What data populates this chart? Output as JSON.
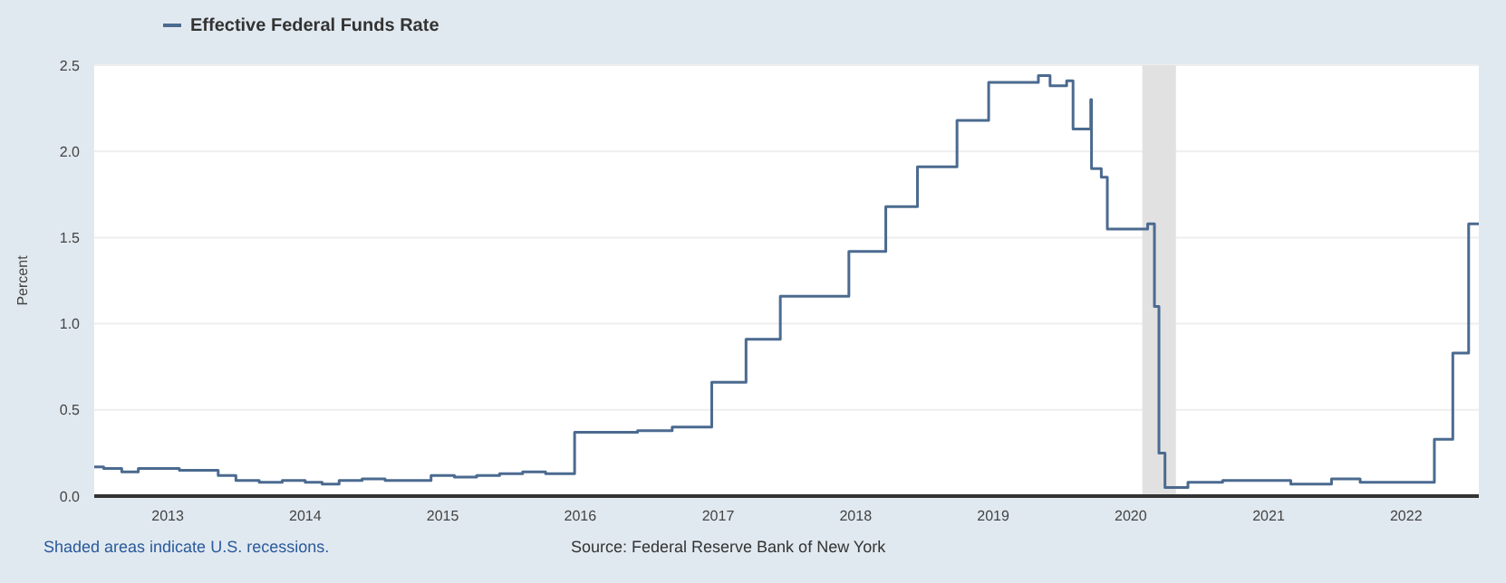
{
  "chart_data": {
    "type": "step",
    "ylabel": "Percent",
    "annotations": [
      "Shaded areas indicate U.S. recessions.",
      "Source: Federal Reserve Bank of New York"
    ],
    "x": [
      "2012-06-20",
      "2012-07-15",
      "2012-09-01",
      "2012-10-15",
      "2012-12-01",
      "2013-02-01",
      "2013-04-01",
      "2013-05-15",
      "2013-07-01",
      "2013-09-01",
      "2013-11-01",
      "2014-01-01",
      "2014-02-15",
      "2014-04-01",
      "2014-06-01",
      "2014-08-01",
      "2014-10-01",
      "2014-12-01",
      "2015-02-01",
      "2015-04-01",
      "2015-06-01",
      "2015-08-01",
      "2015-10-01",
      "2015-12-17",
      "2016-03-01",
      "2016-06-01",
      "2016-09-01",
      "2016-12-15",
      "2017-03-16",
      "2017-06-15",
      "2017-12-14",
      "2018-03-22",
      "2018-06-14",
      "2018-09-27",
      "2018-12-20",
      "2019-03-01",
      "2019-05-01",
      "2019-06-01",
      "2019-07-15",
      "2019-08-01",
      "2019-09-17",
      "2019-09-19",
      "2019-10-15",
      "2019-10-31",
      "2019-12-01",
      "2020-01-15",
      "2020-02-15",
      "2020-03-04",
      "2020-03-16",
      "2020-04-01",
      "2020-06-01",
      "2020-09-01",
      "2021-01-01",
      "2021-03-01",
      "2021-06-17",
      "2021-09-01",
      "2021-12-01",
      "2022-03-17",
      "2022-05-05",
      "2022-06-16",
      "2022-07-13"
    ],
    "series": [
      {
        "name": "Effective Federal Funds Rate",
        "color": "#4b6a8f",
        "values": [
          0.17,
          0.16,
          0.14,
          0.16,
          0.16,
          0.15,
          0.15,
          0.12,
          0.09,
          0.08,
          0.09,
          0.08,
          0.07,
          0.09,
          0.1,
          0.09,
          0.09,
          0.12,
          0.11,
          0.12,
          0.13,
          0.14,
          0.13,
          0.37,
          0.37,
          0.38,
          0.4,
          0.66,
          0.91,
          1.16,
          1.42,
          1.68,
          1.91,
          2.18,
          2.4,
          2.4,
          2.44,
          2.38,
          2.41,
          2.13,
          2.3,
          1.9,
          1.85,
          1.55,
          1.55,
          1.55,
          1.58,
          1.1,
          0.25,
          0.05,
          0.08,
          0.09,
          0.09,
          0.07,
          0.1,
          0.08,
          0.08,
          0.33,
          0.83,
          1.58,
          1.58
        ]
      }
    ],
    "xlim": [
      "2012-06-20",
      "2022-07-13"
    ],
    "xticks": [
      "2013",
      "2014",
      "2015",
      "2016",
      "2017",
      "2018",
      "2019",
      "2020",
      "2021",
      "2022"
    ],
    "ylim": [
      0,
      2.5
    ],
    "yticks": [
      {
        "value": 0,
        "label": "0.0"
      },
      {
        "value": 0.5,
        "label": "0.5"
      },
      {
        "value": 1,
        "label": "1.0"
      },
      {
        "value": 1.5,
        "label": "1.5"
      },
      {
        "value": 2,
        "label": "2.0"
      },
      {
        "value": 2.5,
        "label": "2.5"
      }
    ],
    "bands": [
      {
        "axis": "x",
        "from": "2020-02-01",
        "to": "2020-04-30",
        "color": "#e1e1e1"
      }
    ],
    "grid": "y",
    "legend": "top left",
    "marker": "none",
    "line_style": "solid"
  }
}
